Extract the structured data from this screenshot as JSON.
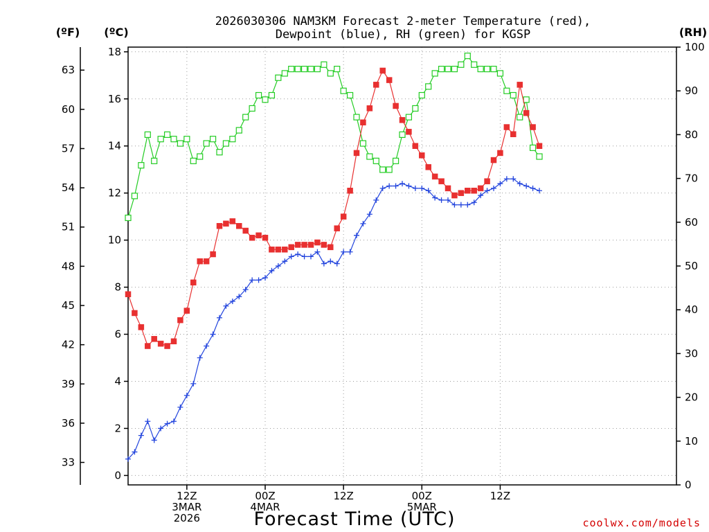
{
  "chart_data": {
    "type": "line",
    "title": [
      "2026030306 NAM3KM Forecast 2-meter Temperature (red),",
      "Dewpoint (blue), RH (green) for KGSP"
    ],
    "xlabel": "Forecast Time (UTC)",
    "credit": "coolwx.com/models",
    "x_hours": [
      0,
      84
    ],
    "x_ticks": [
      {
        "h": 9,
        "lines": [
          "12Z",
          "3MAR",
          "2026"
        ]
      },
      {
        "h": 21,
        "lines": [
          "00Z",
          "4MAR"
        ]
      },
      {
        "h": 33,
        "lines": [
          "12Z"
        ]
      },
      {
        "h": 45,
        "lines": [
          "00Z",
          "5MAR"
        ]
      },
      {
        "h": 57,
        "lines": [
          "12Z"
        ]
      }
    ],
    "axes": {
      "left_c": {
        "label": "(ºC)",
        "range": [
          -0.4,
          18.2
        ],
        "ticks": [
          0,
          2,
          4,
          6,
          8,
          10,
          12,
          14,
          16,
          18
        ]
      },
      "left_f": {
        "label": "(ºF)",
        "ticks": [
          33,
          36,
          39,
          42,
          45,
          48,
          51,
          54,
          57,
          60,
          63
        ]
      },
      "right_rh": {
        "label": "(RH)",
        "range": [
          0,
          100
        ],
        "ticks": [
          0,
          10,
          20,
          30,
          40,
          50,
          60,
          70,
          80,
          90,
          100
        ]
      }
    },
    "series": [
      {
        "name": "RH",
        "axis": "right_rh",
        "color": "#22cc22",
        "marker": "open-square",
        "x": [
          0,
          1,
          2,
          3,
          4,
          5,
          6,
          7,
          8,
          9,
          10,
          11,
          12,
          13,
          14,
          15,
          16,
          17,
          18,
          19,
          20,
          21,
          22,
          23,
          24,
          25,
          26,
          27,
          28,
          29,
          30,
          31,
          32,
          33,
          34,
          35,
          36,
          37,
          38,
          39,
          40,
          41,
          42,
          43,
          44,
          45,
          46,
          47,
          48,
          49,
          50,
          51,
          52,
          53,
          54,
          55,
          56,
          57,
          58,
          59,
          60,
          61,
          62,
          63
        ],
        "values": [
          61,
          66,
          73,
          80,
          74,
          79,
          80,
          79,
          78,
          79,
          74,
          75,
          78,
          79,
          76,
          78,
          79,
          81,
          84,
          86,
          89,
          88,
          89,
          93,
          94,
          95,
          95,
          95,
          95,
          95,
          96,
          94,
          95,
          90,
          89,
          84,
          78,
          75,
          74,
          72,
          72,
          74,
          80,
          84,
          86,
          89,
          91,
          94,
          95,
          95,
          95,
          96,
          98,
          96,
          95,
          95,
          95,
          94,
          90,
          89,
          84,
          88,
          77,
          75
        ]
      },
      {
        "name": "Temperature",
        "axis": "left_c",
        "color": "#e83030",
        "marker": "filled-square",
        "x": [
          0,
          1,
          2,
          3,
          4,
          5,
          6,
          7,
          8,
          9,
          10,
          11,
          12,
          13,
          14,
          15,
          16,
          17,
          18,
          19,
          20,
          21,
          22,
          23,
          24,
          25,
          26,
          27,
          28,
          29,
          30,
          31,
          32,
          33,
          34,
          35,
          36,
          37,
          38,
          39,
          40,
          41,
          42,
          43,
          44,
          45,
          46,
          47,
          48,
          49,
          50,
          51,
          52,
          53,
          54,
          55,
          56,
          57,
          58,
          59,
          60,
          61,
          62,
          63
        ],
        "values": [
          7.7,
          6.9,
          6.3,
          5.5,
          5.8,
          5.6,
          5.5,
          5.7,
          6.6,
          7.0,
          8.2,
          9.1,
          9.1,
          9.4,
          10.6,
          10.7,
          10.8,
          10.6,
          10.4,
          10.1,
          10.2,
          10.1,
          9.6,
          9.6,
          9.6,
          9.7,
          9.8,
          9.8,
          9.8,
          9.9,
          9.8,
          9.7,
          10.5,
          11.0,
          12.1,
          13.7,
          15.0,
          15.6,
          16.6,
          17.2,
          16.8,
          15.7,
          15.1,
          14.6,
          14.0,
          13.6,
          13.1,
          12.7,
          12.5,
          12.2,
          11.9,
          12.0,
          12.1,
          12.1,
          12.2,
          12.5,
          13.4,
          13.7,
          14.8,
          14.5,
          16.6,
          15.4,
          14.8,
          14.0
        ]
      },
      {
        "name": "Dewpoint",
        "axis": "left_c",
        "color": "#2244dd",
        "marker": "plus",
        "x": [
          0,
          1,
          2,
          3,
          4,
          5,
          6,
          7,
          8,
          9,
          10,
          11,
          12,
          13,
          14,
          15,
          16,
          17,
          18,
          19,
          20,
          21,
          22,
          23,
          24,
          25,
          26,
          27,
          28,
          29,
          30,
          31,
          32,
          33,
          34,
          35,
          36,
          37,
          38,
          39,
          40,
          41,
          42,
          43,
          44,
          45,
          46,
          47,
          48,
          49,
          50,
          51,
          52,
          53,
          54,
          55,
          56,
          57,
          58,
          59,
          60,
          61,
          62,
          63
        ],
        "values": [
          0.7,
          1.0,
          1.7,
          2.3,
          1.5,
          2.0,
          2.2,
          2.3,
          2.9,
          3.4,
          3.9,
          5.0,
          5.5,
          6.0,
          6.7,
          7.2,
          7.4,
          7.6,
          7.9,
          8.3,
          8.3,
          8.4,
          8.7,
          8.9,
          9.1,
          9.3,
          9.4,
          9.3,
          9.3,
          9.5,
          9.0,
          9.1,
          9.0,
          9.5,
          9.5,
          10.2,
          10.7,
          11.1,
          11.7,
          12.2,
          12.3,
          12.3,
          12.4,
          12.3,
          12.2,
          12.2,
          12.1,
          11.8,
          11.7,
          11.7,
          11.5,
          11.5,
          11.5,
          11.6,
          11.9,
          12.1,
          12.2,
          12.4,
          12.6,
          12.6,
          12.4,
          12.3,
          12.2,
          12.1
        ]
      }
    ]
  }
}
